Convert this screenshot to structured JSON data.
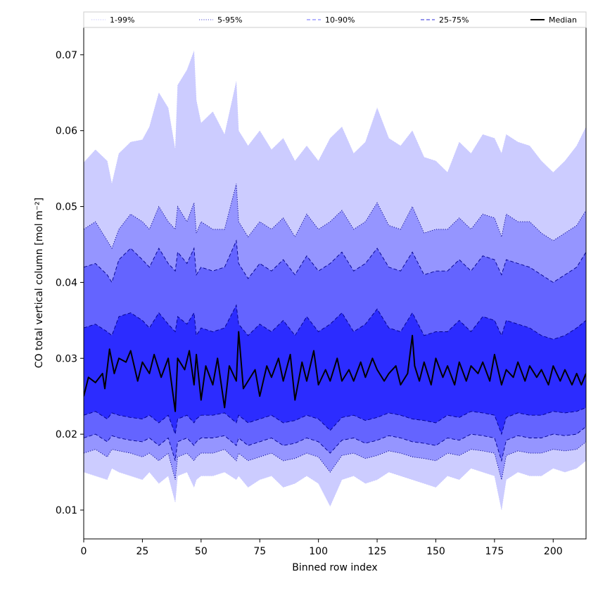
{
  "chart_data": {
    "type": "area",
    "title": "",
    "xlabel": "Binned row index",
    "ylabel": "CO total vertical column [mol m⁻²]",
    "xlim": [
      0,
      214
    ],
    "ylim": [
      0.0062,
      0.0736
    ],
    "x_ticks": [
      0,
      25,
      50,
      75,
      100,
      125,
      150,
      175,
      200
    ],
    "y_ticks": [
      0.01,
      0.02,
      0.03,
      0.04,
      0.05,
      0.06,
      0.07
    ],
    "y_tick_labels": [
      "0.01",
      "0.02",
      "0.03",
      "0.04",
      "0.05",
      "0.06",
      "0.07"
    ],
    "legend_position": "top (above plot, full width)",
    "colors": {
      "band_1_99": "#ccccff",
      "band_5_95": "#9595ff",
      "band_10_90": "#6464ff",
      "band_25_75": "#2c2cff",
      "median": "#000000",
      "percentile_lines": "#00008b"
    },
    "series": [
      {
        "name": "1-99%",
        "key": "p1_99",
        "style": "dotted",
        "color": "#c0c0ff",
        "x": [
          0,
          5,
          10,
          12,
          15,
          20,
          25,
          28,
          32,
          36,
          39,
          40,
          44,
          47,
          48,
          50,
          55,
          60,
          65,
          66,
          70,
          75,
          80,
          85,
          90,
          95,
          100,
          105,
          110,
          115,
          120,
          125,
          130,
          135,
          140,
          145,
          150,
          155,
          160,
          165,
          170,
          175,
          178,
          180,
          185,
          190,
          195,
          200,
          205,
          210,
          214
        ],
        "upper": [
          0.0558,
          0.0575,
          0.056,
          0.053,
          0.057,
          0.0585,
          0.0588,
          0.0605,
          0.065,
          0.063,
          0.0575,
          0.066,
          0.068,
          0.0705,
          0.064,
          0.061,
          0.0625,
          0.0595,
          0.0665,
          0.06,
          0.058,
          0.06,
          0.0575,
          0.059,
          0.056,
          0.058,
          0.056,
          0.059,
          0.0605,
          0.057,
          0.0585,
          0.063,
          0.059,
          0.058,
          0.06,
          0.0565,
          0.056,
          0.0545,
          0.0585,
          0.057,
          0.0595,
          0.059,
          0.057,
          0.0595,
          0.0585,
          0.058,
          0.056,
          0.0545,
          0.056,
          0.058,
          0.0605
        ],
        "lower": [
          0.015,
          0.0145,
          0.014,
          0.0155,
          0.015,
          0.0145,
          0.014,
          0.015,
          0.0135,
          0.0145,
          0.011,
          0.0145,
          0.015,
          0.013,
          0.014,
          0.0145,
          0.0145,
          0.015,
          0.014,
          0.0145,
          0.013,
          0.014,
          0.0145,
          0.013,
          0.0135,
          0.0145,
          0.0135,
          0.0105,
          0.014,
          0.0145,
          0.0135,
          0.014,
          0.015,
          0.0145,
          0.014,
          0.0135,
          0.013,
          0.0145,
          0.014,
          0.0155,
          0.015,
          0.0145,
          0.01,
          0.014,
          0.015,
          0.0145,
          0.0145,
          0.0155,
          0.015,
          0.0155,
          0.0165
        ]
      },
      {
        "name": "5-95%",
        "key": "p5_95",
        "style": "dotted",
        "color": "#00008b",
        "x": [
          0,
          5,
          10,
          12,
          15,
          20,
          25,
          28,
          32,
          36,
          39,
          40,
          44,
          47,
          48,
          50,
          55,
          60,
          65,
          66,
          70,
          75,
          80,
          85,
          90,
          95,
          100,
          105,
          110,
          115,
          120,
          125,
          130,
          135,
          140,
          145,
          150,
          155,
          160,
          165,
          170,
          175,
          178,
          180,
          185,
          190,
          195,
          200,
          205,
          210,
          214
        ],
        "upper": [
          0.047,
          0.048,
          0.0455,
          0.0445,
          0.047,
          0.049,
          0.048,
          0.047,
          0.05,
          0.048,
          0.047,
          0.05,
          0.048,
          0.0505,
          0.0465,
          0.048,
          0.047,
          0.047,
          0.053,
          0.048,
          0.046,
          0.048,
          0.047,
          0.0485,
          0.046,
          0.049,
          0.047,
          0.048,
          0.0495,
          0.047,
          0.048,
          0.0505,
          0.0475,
          0.047,
          0.05,
          0.0465,
          0.047,
          0.047,
          0.0485,
          0.047,
          0.049,
          0.0485,
          0.046,
          0.049,
          0.048,
          0.048,
          0.0465,
          0.0455,
          0.0465,
          0.0475,
          0.0495
        ],
        "lower": [
          0.0175,
          0.018,
          0.017,
          0.018,
          0.0178,
          0.0175,
          0.017,
          0.0175,
          0.0165,
          0.0175,
          0.014,
          0.017,
          0.0175,
          0.0165,
          0.017,
          0.0175,
          0.0175,
          0.018,
          0.0165,
          0.0175,
          0.0165,
          0.017,
          0.0175,
          0.0165,
          0.0168,
          0.0175,
          0.017,
          0.015,
          0.0172,
          0.0175,
          0.0168,
          0.0172,
          0.0178,
          0.0175,
          0.017,
          0.0168,
          0.0165,
          0.0175,
          0.0172,
          0.018,
          0.0178,
          0.0175,
          0.014,
          0.0172,
          0.0178,
          0.0175,
          0.0175,
          0.018,
          0.0178,
          0.018,
          0.019
        ]
      },
      {
        "name": "10-90%",
        "key": "p10_90",
        "style": "dashed",
        "color": "#00008b",
        "x": [
          0,
          5,
          10,
          12,
          15,
          20,
          25,
          28,
          32,
          36,
          39,
          40,
          44,
          47,
          48,
          50,
          55,
          60,
          65,
          66,
          70,
          75,
          80,
          85,
          90,
          95,
          100,
          105,
          110,
          115,
          120,
          125,
          130,
          135,
          140,
          145,
          150,
          155,
          160,
          165,
          170,
          175,
          178,
          180,
          185,
          190,
          195,
          200,
          205,
          210,
          214
        ],
        "upper": [
          0.042,
          0.0425,
          0.041,
          0.04,
          0.043,
          0.0445,
          0.043,
          0.042,
          0.0445,
          0.0425,
          0.0415,
          0.044,
          0.0425,
          0.0445,
          0.041,
          0.042,
          0.0415,
          0.042,
          0.0455,
          0.0425,
          0.0405,
          0.0425,
          0.0415,
          0.043,
          0.041,
          0.0435,
          0.0415,
          0.0425,
          0.044,
          0.0415,
          0.0425,
          0.0445,
          0.042,
          0.0415,
          0.044,
          0.041,
          0.0415,
          0.0415,
          0.043,
          0.0415,
          0.0435,
          0.043,
          0.041,
          0.043,
          0.0425,
          0.042,
          0.041,
          0.04,
          0.041,
          0.042,
          0.044
        ],
        "lower": [
          0.0195,
          0.02,
          0.019,
          0.0198,
          0.0195,
          0.0192,
          0.019,
          0.0195,
          0.0185,
          0.0195,
          0.0165,
          0.019,
          0.0195,
          0.0185,
          0.019,
          0.0195,
          0.0195,
          0.0198,
          0.0185,
          0.0195,
          0.0185,
          0.019,
          0.0195,
          0.0185,
          0.0188,
          0.0195,
          0.019,
          0.0175,
          0.0192,
          0.0195,
          0.0188,
          0.0192,
          0.0198,
          0.0195,
          0.019,
          0.0188,
          0.0185,
          0.0195,
          0.0192,
          0.02,
          0.0198,
          0.0195,
          0.0165,
          0.0192,
          0.0198,
          0.0195,
          0.0195,
          0.02,
          0.0198,
          0.02,
          0.021
        ]
      },
      {
        "name": "25-75%",
        "key": "p25_75",
        "style": "dashed",
        "color": "#00008b",
        "x": [
          0,
          5,
          10,
          12,
          15,
          20,
          25,
          28,
          32,
          36,
          39,
          40,
          44,
          47,
          48,
          50,
          55,
          60,
          65,
          66,
          70,
          75,
          80,
          85,
          90,
          95,
          100,
          105,
          110,
          115,
          120,
          125,
          130,
          135,
          140,
          145,
          150,
          155,
          160,
          165,
          170,
          175,
          178,
          180,
          185,
          190,
          195,
          200,
          205,
          210,
          214
        ],
        "upper": [
          0.034,
          0.0345,
          0.0335,
          0.033,
          0.0355,
          0.036,
          0.035,
          0.034,
          0.036,
          0.0345,
          0.0335,
          0.0355,
          0.0345,
          0.036,
          0.033,
          0.034,
          0.0335,
          0.034,
          0.037,
          0.0345,
          0.033,
          0.0345,
          0.0335,
          0.035,
          0.033,
          0.0355,
          0.0335,
          0.0345,
          0.036,
          0.0335,
          0.0345,
          0.0365,
          0.034,
          0.0335,
          0.036,
          0.033,
          0.0335,
          0.0335,
          0.035,
          0.0335,
          0.0355,
          0.035,
          0.033,
          0.035,
          0.0345,
          0.034,
          0.033,
          0.0325,
          0.033,
          0.034,
          0.035
        ],
        "lower": [
          0.0225,
          0.023,
          0.022,
          0.0228,
          0.0225,
          0.0222,
          0.022,
          0.0225,
          0.0215,
          0.0225,
          0.02,
          0.022,
          0.0225,
          0.0215,
          0.022,
          0.0225,
          0.0225,
          0.0228,
          0.0215,
          0.0225,
          0.0215,
          0.022,
          0.0225,
          0.0215,
          0.0218,
          0.0225,
          0.022,
          0.0205,
          0.0222,
          0.0225,
          0.0218,
          0.0222,
          0.0228,
          0.0225,
          0.022,
          0.0218,
          0.0215,
          0.0225,
          0.0222,
          0.023,
          0.0228,
          0.0225,
          0.02,
          0.0222,
          0.0228,
          0.0225,
          0.0225,
          0.023,
          0.0228,
          0.023,
          0.0235
        ]
      },
      {
        "name": "Median",
        "key": "median",
        "style": "solid",
        "color": "#000000",
        "x": [
          0,
          2,
          5,
          8,
          9,
          11,
          13,
          15,
          18,
          20,
          23,
          25,
          28,
          30,
          33,
          36,
          39,
          40,
          43,
          45,
          47,
          48,
          50,
          52,
          55,
          57,
          60,
          62,
          65,
          66,
          68,
          70,
          73,
          75,
          78,
          80,
          83,
          85,
          88,
          90,
          93,
          95,
          98,
          100,
          103,
          105,
          108,
          110,
          113,
          115,
          118,
          120,
          123,
          125,
          128,
          130,
          133,
          135,
          138,
          140,
          141,
          143,
          145,
          148,
          150,
          153,
          155,
          158,
          160,
          163,
          165,
          168,
          170,
          173,
          175,
          178,
          180,
          183,
          185,
          188,
          190,
          193,
          195,
          198,
          200,
          203,
          205,
          208,
          210,
          212,
          214
        ],
        "values": [
          0.025,
          0.0275,
          0.0268,
          0.028,
          0.026,
          0.0312,
          0.028,
          0.03,
          0.0295,
          0.031,
          0.027,
          0.0295,
          0.028,
          0.0305,
          0.0275,
          0.03,
          0.023,
          0.03,
          0.0285,
          0.031,
          0.0265,
          0.0305,
          0.0245,
          0.029,
          0.0265,
          0.03,
          0.0235,
          0.029,
          0.027,
          0.0335,
          0.026,
          0.027,
          0.0285,
          0.025,
          0.029,
          0.0275,
          0.03,
          0.027,
          0.0305,
          0.0245,
          0.0295,
          0.027,
          0.031,
          0.0265,
          0.0285,
          0.027,
          0.03,
          0.027,
          0.0285,
          0.027,
          0.0295,
          0.0275,
          0.03,
          0.0285,
          0.027,
          0.028,
          0.029,
          0.0265,
          0.028,
          0.033,
          0.029,
          0.027,
          0.0295,
          0.0265,
          0.03,
          0.0275,
          0.029,
          0.0265,
          0.0295,
          0.027,
          0.029,
          0.028,
          0.0295,
          0.027,
          0.0305,
          0.0265,
          0.0285,
          0.0275,
          0.0295,
          0.027,
          0.029,
          0.0275,
          0.0285,
          0.0265,
          0.029,
          0.027,
          0.0285,
          0.0265,
          0.028,
          0.0265,
          0.028
        ]
      }
    ]
  }
}
